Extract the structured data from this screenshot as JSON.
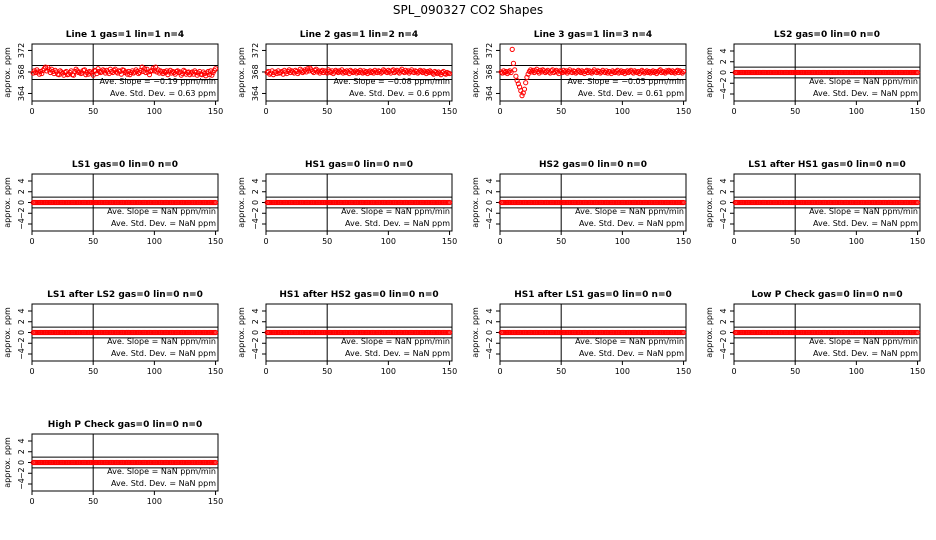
{
  "figure": {
    "title": "SPL_090327  CO2 Shapes",
    "colors": {
      "points": "#ff0000",
      "axes": "#000000",
      "background": "#ffffff"
    }
  },
  "chart_data": [
    {
      "type": "scatter",
      "title": "Line 1 gas=1 lin=1 n=4",
      "xlabel": "",
      "ylabel": "approx. ppm",
      "xlim": [
        0,
        152
      ],
      "ylim": [
        362.6,
        373.2
      ],
      "xticks": [
        0,
        50,
        100,
        150
      ],
      "yticks": [
        364,
        368,
        372
      ],
      "vline_x": 50,
      "hlines": [
        369.2,
        366.6
      ],
      "slope_label": "Ave. Slope =",
      "slope_value": "-0.19",
      "slope_unit": "ppm/min",
      "std_label": "Ave. Std. Dev. =",
      "std_value": "0.63",
      "std_unit": "ppm",
      "series": [
        {
          "x_start": 1,
          "x_step": 1,
          "y": [
            367.8,
            368.2,
            367.9,
            368.4,
            368.0,
            367.6,
            368.1,
            367.7,
            368.3,
            368.6,
            368.9,
            368.2,
            368.8,
            368.4,
            367.9,
            368.5,
            368.1,
            367.7,
            368.3,
            368.0,
            367.6,
            367.5,
            368.2,
            368.0,
            367.8,
            367.4,
            367.9,
            368.1,
            367.5,
            367.6,
            367.9,
            368.2,
            367.5,
            367.4,
            368.1,
            368.5,
            368.2,
            367.9,
            368.0,
            367.7,
            367.8,
            368.3,
            368.4,
            367.5,
            367.9,
            367.6,
            368.1,
            368.0,
            367.8,
            367.4,
            368.3,
            368.2,
            367.7,
            368.6,
            368.1,
            367.9,
            368.0,
            368.4,
            368.2,
            367.8,
            368.3,
            368.0,
            367.7,
            368.5,
            368.1,
            367.9,
            368.3,
            368.5,
            368.0,
            367.8,
            368.2,
            368.1,
            367.6,
            368.4,
            368.3,
            367.9,
            368.0,
            367.6,
            368.1,
            367.5,
            367.9,
            368.2,
            367.8,
            368.0,
            368.4,
            368.1,
            367.7,
            367.9,
            368.3,
            368.9,
            368.1,
            368.6,
            367.9,
            368.5,
            368.0,
            367.5,
            368.1,
            368.3,
            368.7,
            368.2,
            368.9,
            368.0,
            368.4,
            367.8,
            368.2,
            368.0,
            367.7,
            368.1,
            367.9,
            368.2,
            367.5,
            368.0,
            368.3,
            367.8,
            368.1,
            367.9,
            367.6,
            368.1,
            368.2,
            367.9,
            368.0,
            367.4,
            367.7,
            368.3,
            368.1,
            367.6,
            367.9,
            368.0,
            367.5,
            367.8,
            368.0,
            367.6,
            368.2,
            367.9,
            367.4,
            367.8,
            368.1,
            367.6,
            367.5,
            368.0,
            367.7,
            367.3,
            367.8,
            368.1,
            367.5,
            368.2,
            367.4,
            367.9,
            368.3,
            368.6
          ]
        }
      ]
    },
    {
      "type": "scatter",
      "title": "Line 2 gas=1 lin=2 n=4",
      "xlabel": "",
      "ylabel": "approx. ppm",
      "xlim": [
        0,
        152
      ],
      "ylim": [
        362.6,
        373.2
      ],
      "xticks": [
        0,
        50,
        100,
        150
      ],
      "yticks": [
        364,
        368,
        372
      ],
      "vline_x": 50,
      "hlines": [
        369.2,
        366.6
      ],
      "slope_label": "Ave. Slope =",
      "slope_value": "-0.08",
      "slope_unit": "ppm/min",
      "std_label": "Ave. Std. Dev. =",
      "std_value": "0.6",
      "std_unit": "ppm",
      "series": [
        {
          "x_start": 1,
          "x_step": 1,
          "y": [
            367.9,
            368.1,
            367.6,
            367.8,
            368.2,
            367.5,
            367.9,
            368.0,
            367.7,
            368.2,
            367.8,
            367.9,
            368.1,
            367.6,
            368.3,
            368.0,
            367.7,
            368.1,
            368.4,
            367.9,
            368.2,
            368.0,
            367.8,
            368.3,
            368.1,
            367.7,
            368.0,
            368.5,
            368.2,
            367.9,
            368.1,
            368.4,
            368.0,
            368.6,
            368.2,
            368.7,
            368.4,
            368.1,
            367.9,
            368.3,
            368.5,
            368.0,
            368.2,
            367.8,
            368.1,
            368.3,
            367.9,
            368.2,
            368.0,
            367.8,
            368.4,
            368.1,
            367.9,
            368.2,
            367.7,
            368.0,
            368.3,
            368.1,
            367.9,
            368.2,
            368.0,
            368.4,
            367.8,
            368.1,
            367.9,
            368.2,
            368.0,
            367.7,
            368.3,
            368.1,
            367.9,
            368.0,
            368.2,
            367.8,
            368.1,
            367.9,
            368.3,
            368.0,
            367.8,
            368.2,
            367.9,
            368.1,
            367.7,
            368.0,
            368.2,
            367.9,
            368.1,
            367.8,
            368.3,
            368.0,
            367.9,
            368.2,
            368.1,
            367.8,
            368.0,
            368.4,
            368.2,
            368.0,
            367.9,
            368.3,
            368.1,
            367.8,
            368.2,
            368.4,
            367.9,
            368.1,
            368.3,
            368.0,
            367.8,
            368.2,
            368.5,
            368.1,
            367.9,
            368.3,
            368.0,
            368.2,
            367.8,
            368.1,
            368.4,
            368.0,
            367.9,
            368.2,
            368.1,
            367.8,
            368.0,
            368.3,
            368.1,
            367.9,
            368.2,
            368.0,
            367.7,
            368.1,
            367.9,
            368.2,
            368.0,
            367.8,
            367.6,
            368.1,
            367.9,
            367.7,
            368.0,
            367.8,
            367.5,
            367.9,
            368.1,
            367.7,
            367.6,
            367.9,
            367.8,
            367.7
          ]
        }
      ]
    },
    {
      "type": "scatter",
      "title": "Line 3 gas=1 lin=3 n=4",
      "xlabel": "",
      "ylabel": "approx. ppm",
      "xlim": [
        0,
        152
      ],
      "ylim": [
        362.6,
        373.2
      ],
      "xticks": [
        0,
        50,
        100,
        150
      ],
      "yticks": [
        364,
        368,
        372
      ],
      "vline_x": 50,
      "hlines": [
        369.2,
        366.6
      ],
      "slope_label": "Ave. Slope =",
      "slope_value": "-0.05",
      "slope_unit": "ppm/min",
      "std_label": "Ave. Std. Dev. =",
      "std_value": "0.61",
      "std_unit": "ppm",
      "series": [
        {
          "x_start": 1,
          "x_step": 1,
          "y": [
            368.0,
            367.8,
            368.2,
            367.9,
            368.1,
            367.7,
            368.0,
            368.2,
            367.9,
            372.2,
            369.6,
            368.4,
            367.2,
            366.4,
            365.8,
            365.2,
            364.5,
            363.6,
            364.1,
            364.8,
            366.0,
            367.0,
            367.6,
            368.1,
            368.4,
            368.0,
            368.3,
            367.9,
            368.2,
            368.5,
            368.1,
            367.8,
            368.3,
            368.0,
            368.4,
            368.2,
            367.9,
            368.1,
            368.3,
            368.0,
            367.8,
            368.2,
            368.4,
            367.9,
            368.1,
            368.3,
            368.0,
            367.7,
            368.2,
            368.1,
            367.9,
            368.3,
            368.0,
            368.2,
            367.8,
            368.1,
            368.4,
            368.0,
            367.9,
            368.2,
            368.1,
            367.8,
            368.0,
            368.3,
            368.1,
            367.9,
            368.2,
            368.0,
            367.7,
            368.1,
            368.3,
            367.9,
            368.2,
            368.0,
            367.8,
            368.1,
            368.4,
            368.0,
            367.9,
            368.2,
            368.1,
            367.8,
            368.0,
            368.3,
            368.0,
            367.9,
            368.2,
            367.8,
            368.1,
            368.0,
            367.7,
            368.2,
            368.0,
            367.9,
            368.1,
            368.3,
            367.8,
            368.0,
            368.2,
            367.9,
            368.1,
            367.7,
            368.0,
            368.2,
            367.9,
            368.1,
            368.3,
            368.0,
            367.8,
            368.2,
            368.0,
            367.9,
            368.1,
            367.7,
            368.0,
            368.3,
            368.1,
            367.8,
            368.0,
            368.2,
            367.9,
            368.1,
            367.8,
            368.0,
            368.2,
            367.9,
            368.1,
            367.7,
            368.0,
            368.2,
            368.4,
            367.9,
            368.1,
            368.0,
            367.8,
            368.2,
            368.0,
            368.3,
            368.1,
            367.9,
            368.2,
            368.0,
            367.8,
            368.1,
            368.3,
            367.9,
            368.2,
            368.0,
            367.8,
            368.1
          ]
        }
      ]
    },
    {
      "type": "scatter",
      "title": "LS2 gas=0 lin=0 n=0",
      "xlabel": "",
      "ylabel": "approx. ppm",
      "xlim": [
        0,
        152
      ],
      "ylim": [
        -5.3,
        5.3
      ],
      "xticks": [
        0,
        50,
        100,
        150
      ],
      "yticks": [
        -4,
        -2,
        0,
        2,
        4
      ],
      "vline_x": 50,
      "hlines": [
        1,
        -1
      ],
      "slope_label": "Ave. Slope =",
      "slope_value": "NaN",
      "slope_unit": "ppm/min",
      "std_label": "Ave. Std. Dev. =",
      "std_value": "NaN",
      "std_unit": "ppm",
      "series": [
        {
          "x_start": 1,
          "x_end": 150,
          "x_step": 1,
          "y_constant": 0
        }
      ]
    },
    {
      "type": "scatter",
      "title": "LS1 gas=0 lin=0 n=0",
      "xlabel": "",
      "ylabel": "approx. ppm",
      "xlim": [
        0,
        152
      ],
      "ylim": [
        -5.3,
        5.3
      ],
      "xticks": [
        0,
        50,
        100,
        150
      ],
      "yticks": [
        -4,
        -2,
        0,
        2,
        4
      ],
      "vline_x": 50,
      "hlines": [
        1,
        -1
      ],
      "slope_label": "Ave. Slope =",
      "slope_value": "NaN",
      "slope_unit": "ppm/min",
      "std_label": "Ave. Std. Dev. =",
      "std_value": "NaN",
      "std_unit": "ppm",
      "series": [
        {
          "x_start": 1,
          "x_end": 150,
          "x_step": 1,
          "y_constant": 0
        }
      ]
    },
    {
      "type": "scatter",
      "title": "HS1 gas=0 lin=0 n=0",
      "xlabel": "",
      "ylabel": "approx. ppm",
      "xlim": [
        0,
        152
      ],
      "ylim": [
        -5.3,
        5.3
      ],
      "xticks": [
        0,
        50,
        100,
        150
      ],
      "yticks": [
        -4,
        -2,
        0,
        2,
        4
      ],
      "vline_x": 50,
      "hlines": [
        1,
        -1
      ],
      "slope_label": "Ave. Slope =",
      "slope_value": "NaN",
      "slope_unit": "ppm/min",
      "std_label": "Ave. Std. Dev. =",
      "std_value": "NaN",
      "std_unit": "ppm",
      "series": [
        {
          "x_start": 1,
          "x_end": 150,
          "x_step": 1,
          "y_constant": 0
        }
      ]
    },
    {
      "type": "scatter",
      "title": "HS2 gas=0 lin=0 n=0",
      "xlabel": "",
      "ylabel": "approx. ppm",
      "xlim": [
        0,
        152
      ],
      "ylim": [
        -5.3,
        5.3
      ],
      "xticks": [
        0,
        50,
        100,
        150
      ],
      "yticks": [
        -4,
        -2,
        0,
        2,
        4
      ],
      "vline_x": 50,
      "hlines": [
        1,
        -1
      ],
      "slope_label": "Ave. Slope =",
      "slope_value": "NaN",
      "slope_unit": "ppm/min",
      "std_label": "Ave. Std. Dev. =",
      "std_value": "NaN",
      "std_unit": "ppm",
      "series": [
        {
          "x_start": 1,
          "x_end": 150,
          "x_step": 1,
          "y_constant": 0
        }
      ]
    },
    {
      "type": "scatter",
      "title": "LS1 after HS1 gas=0 lin=0 n=0",
      "xlabel": "",
      "ylabel": "approx. ppm",
      "xlim": [
        0,
        152
      ],
      "ylim": [
        -5.3,
        5.3
      ],
      "xticks": [
        0,
        50,
        100,
        150
      ],
      "yticks": [
        -4,
        -2,
        0,
        2,
        4
      ],
      "vline_x": 50,
      "hlines": [
        1,
        -1
      ],
      "slope_label": "Ave. Slope =",
      "slope_value": "NaN",
      "slope_unit": "ppm/min",
      "std_label": "Ave. Std. Dev. =",
      "std_value": "NaN",
      "std_unit": "ppm",
      "series": [
        {
          "x_start": 1,
          "x_end": 150,
          "x_step": 1,
          "y_constant": 0
        }
      ]
    },
    {
      "type": "scatter",
      "title": "LS1 after LS2 gas=0 lin=0 n=0",
      "xlabel": "",
      "ylabel": "approx. ppm",
      "xlim": [
        0,
        152
      ],
      "ylim": [
        -5.3,
        5.3
      ],
      "xticks": [
        0,
        50,
        100,
        150
      ],
      "yticks": [
        -4,
        -2,
        0,
        2,
        4
      ],
      "vline_x": 50,
      "hlines": [
        1,
        -1
      ],
      "slope_label": "Ave. Slope =",
      "slope_value": "NaN",
      "slope_unit": "ppm/min",
      "std_label": "Ave. Std. Dev. =",
      "std_value": "NaN",
      "std_unit": "ppm",
      "series": [
        {
          "x_start": 1,
          "x_end": 150,
          "x_step": 1,
          "y_constant": 0
        }
      ]
    },
    {
      "type": "scatter",
      "title": "HS1 after HS2 gas=0 lin=0 n=0",
      "xlabel": "",
      "ylabel": "approx. ppm",
      "xlim": [
        0,
        152
      ],
      "ylim": [
        -5.3,
        5.3
      ],
      "xticks": [
        0,
        50,
        100,
        150
      ],
      "yticks": [
        -4,
        -2,
        0,
        2,
        4
      ],
      "vline_x": 50,
      "hlines": [
        1,
        -1
      ],
      "slope_label": "Ave. Slope =",
      "slope_value": "NaN",
      "slope_unit": "ppm/min",
      "std_label": "Ave. Std. Dev. =",
      "std_value": "NaN",
      "std_unit": "ppm",
      "series": [
        {
          "x_start": 1,
          "x_end": 150,
          "x_step": 1,
          "y_constant": 0
        }
      ]
    },
    {
      "type": "scatter",
      "title": "HS1 after LS1 gas=0 lin=0 n=0",
      "xlabel": "",
      "ylabel": "approx. ppm",
      "xlim": [
        0,
        152
      ],
      "ylim": [
        -5.3,
        5.3
      ],
      "xticks": [
        0,
        50,
        100,
        150
      ],
      "yticks": [
        -4,
        -2,
        0,
        2,
        4
      ],
      "vline_x": 50,
      "hlines": [
        1,
        -1
      ],
      "slope_label": "Ave. Slope =",
      "slope_value": "NaN",
      "slope_unit": "ppm/min",
      "std_label": "Ave. Std. Dev. =",
      "std_value": "NaN",
      "std_unit": "ppm",
      "series": [
        {
          "x_start": 1,
          "x_end": 150,
          "x_step": 1,
          "y_constant": 0
        }
      ]
    },
    {
      "type": "scatter",
      "title": "Low P Check gas=0 lin=0 n=0",
      "xlabel": "",
      "ylabel": "approx. ppm",
      "xlim": [
        0,
        152
      ],
      "ylim": [
        -5.3,
        5.3
      ],
      "xticks": [
        0,
        50,
        100,
        150
      ],
      "yticks": [
        -4,
        -2,
        0,
        2,
        4
      ],
      "vline_x": 50,
      "hlines": [
        1,
        -1
      ],
      "slope_label": "Ave. Slope =",
      "slope_value": "NaN",
      "slope_unit": "ppm/min",
      "std_label": "Ave. Std. Dev. =",
      "std_value": "NaN",
      "std_unit": "ppm",
      "series": [
        {
          "x_start": 1,
          "x_end": 150,
          "x_step": 1,
          "y_constant": 0
        }
      ]
    },
    {
      "type": "scatter",
      "title": "High P Check gas=0 lin=0 n=0",
      "xlabel": "",
      "ylabel": "approx. ppm",
      "xlim": [
        0,
        152
      ],
      "ylim": [
        -5.3,
        5.3
      ],
      "xticks": [
        0,
        50,
        100,
        150
      ],
      "yticks": [
        -4,
        -2,
        0,
        2,
        4
      ],
      "vline_x": 50,
      "hlines": [
        1,
        -1
      ],
      "slope_label": "Ave. Slope =",
      "slope_value": "NaN",
      "slope_unit": "ppm/min",
      "std_label": "Ave. Std. Dev. =",
      "std_value": "NaN",
      "std_unit": "ppm",
      "series": [
        {
          "x_start": 1,
          "x_end": 150,
          "x_step": 1,
          "y_constant": 0
        }
      ]
    }
  ]
}
